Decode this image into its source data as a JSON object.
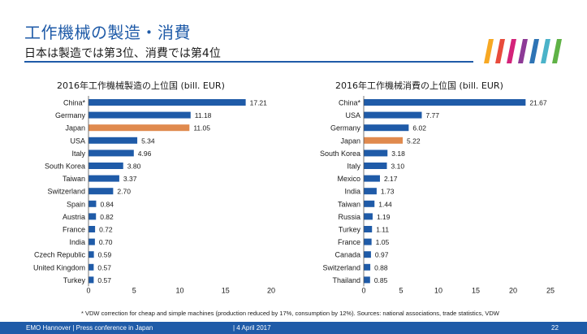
{
  "header": {
    "title": "工作機械の製造・消費",
    "subtitle": "日本は製造では第3位、消費では第4位"
  },
  "colors": {
    "bar": "#1f5ba8",
    "highlight": "#e08a4e",
    "text": "#1a1a1a",
    "footer_bg": "#1f5ba8",
    "logo": [
      "#f7a823",
      "#e84b3c",
      "#d4237a",
      "#8d3a96",
      "#2e74b5",
      "#4bb3c9",
      "#5fb246"
    ]
  },
  "chart_data": [
    {
      "type": "bar",
      "orientation": "horizontal",
      "title": "2016年工作機械製造の上位国 (bill. EUR)",
      "categories": [
        "China*",
        "Germany",
        "Japan",
        "USA",
        "Italy",
        "South Korea",
        "Taiwan",
        "Switzerland",
        "Spain",
        "Austria",
        "France",
        "India",
        "Czech Republic",
        "United Kingdom",
        "Turkey"
      ],
      "values": [
        17.21,
        11.18,
        11.05,
        5.34,
        4.96,
        3.8,
        3.37,
        2.7,
        0.84,
        0.82,
        0.72,
        0.7,
        0.59,
        0.57,
        0.57
      ],
      "labels": [
        "17.21",
        "11.18",
        "11.05",
        "5.34",
        "4.96",
        "3.80",
        "3.37",
        "2.70",
        "0.84",
        "0.82",
        "0.72",
        "0.70",
        "0.59",
        "0.57",
        "0.57"
      ],
      "highlight": "Japan",
      "xlim": [
        0,
        20
      ],
      "xticks": [
        "0",
        "5",
        "10",
        "15",
        "20"
      ],
      "grid": false
    },
    {
      "type": "bar",
      "orientation": "horizontal",
      "title": "2016年工作機械消費の上位国 (bill. EUR)",
      "categories": [
        "China*",
        "USA",
        "Germany",
        "Japan",
        "South Korea",
        "Italy",
        "Mexico",
        "India",
        "Taiwan",
        "Russia",
        "Turkey",
        "France",
        "Canada",
        "Switzerland",
        "Thailand"
      ],
      "values": [
        21.67,
        7.77,
        6.02,
        5.22,
        3.18,
        3.1,
        2.17,
        1.73,
        1.44,
        1.19,
        1.11,
        1.05,
        0.97,
        0.88,
        0.85
      ],
      "labels": [
        "21.67",
        "7.77",
        "6.02",
        "5.22",
        "3.18",
        "3.10",
        "2.17",
        "1.73",
        "1.44",
        "1.19",
        "1.11",
        "1.05",
        "0.97",
        "0.88",
        "0.85"
      ],
      "highlight": "Japan",
      "xlim": [
        0,
        25
      ],
      "xticks": [
        "0",
        "5",
        "10",
        "15",
        "20",
        "25"
      ],
      "grid": false
    }
  ],
  "footnote": "* VDW correction for cheap and simple machines (production reduced by 17%, consumption by 12%). Sources: national associations, trade statistics, VDW",
  "footer": {
    "left": "EMO Hannover | Press conference in Japan",
    "date": "| 4 April 2017",
    "page": "22"
  }
}
